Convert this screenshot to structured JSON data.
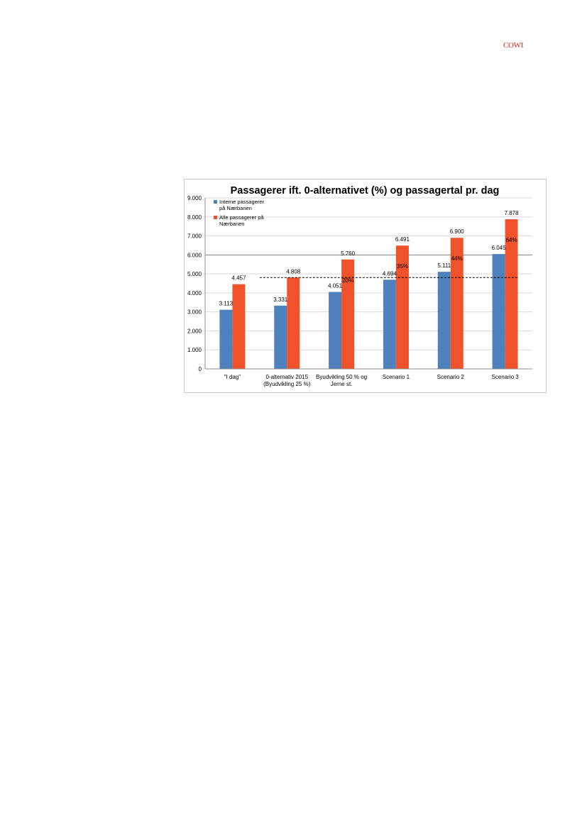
{
  "header": {
    "logo_text": "COWI"
  },
  "colors": {
    "series_interne": "#4f81bd",
    "series_alle": "#f0522b",
    "gridline": "#d9d9d9",
    "reference_line": "#000000",
    "axis": "#8c8c8c",
    "text": "#000000"
  },
  "chart_data": {
    "type": "bar",
    "title": "Passagerer ift. 0-alternativet (%) og passagertal pr. dag",
    "xlabel": "",
    "ylabel": "",
    "ylim": [
      0,
      9000
    ],
    "yticks": [
      0,
      1000,
      2000,
      3000,
      4000,
      5000,
      6000,
      7000,
      8000,
      9000
    ],
    "ytick_labels": [
      "0",
      "1.000",
      "2.000",
      "3.000",
      "4.000",
      "5.000",
      "6.000",
      "7.000",
      "8.000",
      "9.000"
    ],
    "grid": true,
    "legend_position": "top-left",
    "categories": [
      [
        "\"I dag\""
      ],
      [
        "0-alternativ 2015",
        "(Byudvikling 25 %)"
      ],
      [
        "Byudvikling 50 % og",
        "Jerne st."
      ],
      [
        "Scenario 1"
      ],
      [
        "Scenario 2"
      ],
      [
        "Scenario 3"
      ]
    ],
    "series": [
      {
        "name": "Interne passagerer på Nærbanen",
        "legend_lines": [
          "Interne passagerer",
          "på Nærbanen"
        ],
        "values": [
          3113,
          3331,
          4051,
          4694,
          5111,
          6045
        ],
        "labels": [
          "3.113",
          "3.331",
          "4.051",
          "4.694",
          "5.111",
          "6.045"
        ]
      },
      {
        "name": "Alle passagerer på Nærbanen",
        "legend_lines": [
          "Alle passagerer på",
          "Nærbanen"
        ],
        "values": [
          4457,
          4808,
          5760,
          6491,
          6900,
          7878
        ],
        "labels": [
          "4.457",
          "4.808",
          "5.760",
          "6.491",
          "6.900",
          "7.878"
        ],
        "percent_labels": [
          "",
          "",
          "20%",
          "35%",
          "44%",
          "64%"
        ]
      }
    ],
    "reference_line": {
      "value": 4808,
      "style": "dashed"
    }
  }
}
